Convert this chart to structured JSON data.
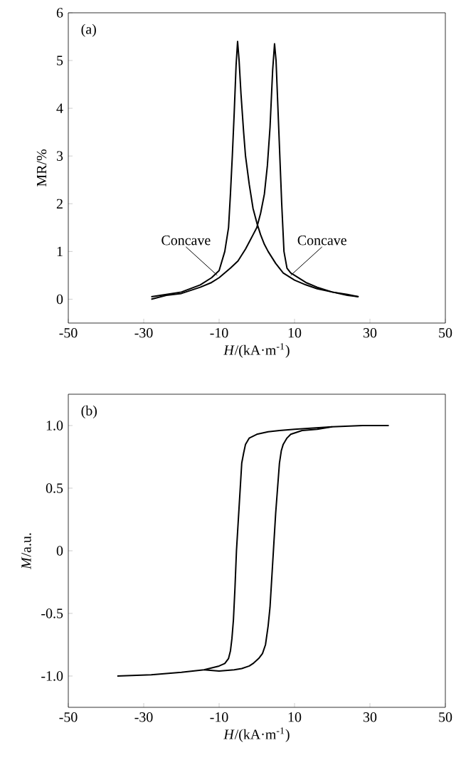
{
  "chart_data": [
    {
      "type": "line",
      "xlabel": "*H*/(kA·m$^{-1}$)",
      "ylabel": "MR/%",
      "xlim": [
        -50,
        50
      ],
      "ylim": [
        -0.5,
        6
      ],
      "xticks": [
        -50,
        -30,
        -10,
        10,
        30,
        50
      ],
      "yticks": [
        0,
        1,
        2,
        3,
        4,
        5,
        6
      ],
      "annotations": [
        "(a)",
        {
          "text": "Concave",
          "x": -10.5,
          "y": 0.5
        },
        {
          "text": "Concave",
          "x": 9,
          "y": 0.5
        }
      ],
      "series": [
        {
          "color": "#000000",
          "x": [
            -28,
            -24,
            -20,
            -15,
            -12,
            -10,
            -8.5,
            -7.5,
            -7,
            -6.5,
            -6,
            -5.5,
            -5.1,
            -4.7,
            -4.2,
            -3.5,
            -3,
            -2,
            -1,
            0,
            1,
            2,
            3,
            5,
            7,
            10,
            13,
            16,
            20,
            24,
            27
          ],
          "values": [
            0.05,
            0.1,
            0.15,
            0.3,
            0.45,
            0.6,
            1.0,
            1.5,
            2.2,
            3.0,
            3.9,
            4.9,
            5.4,
            5.0,
            4.3,
            3.5,
            3.0,
            2.4,
            1.9,
            1.6,
            1.35,
            1.15,
            1.0,
            0.75,
            0.55,
            0.4,
            0.3,
            0.22,
            0.15,
            0.08,
            0.05
          ]
        },
        {
          "color": "#000000",
          "x": [
            -28,
            -24,
            -20,
            -15,
            -12,
            -10,
            -7,
            -5,
            -3,
            -2,
            -1,
            0,
            1,
            2,
            2.8,
            3.5,
            4.2,
            4.7,
            5.1,
            5.6,
            6.1,
            6.6,
            7.2,
            8,
            9,
            10,
            13,
            16,
            20,
            24,
            27
          ],
          "values": [
            0.0,
            0.08,
            0.12,
            0.25,
            0.35,
            0.45,
            0.65,
            0.8,
            1.05,
            1.2,
            1.35,
            1.5,
            1.8,
            2.2,
            2.8,
            3.6,
            4.8,
            5.35,
            5.0,
            4.0,
            3.0,
            2.0,
            1.0,
            0.65,
            0.55,
            0.5,
            0.35,
            0.25,
            0.15,
            0.1,
            0.05
          ]
        }
      ]
    },
    {
      "type": "line",
      "xlabel": "*H*/(kA·m$^{-1}$)",
      "ylabel": "*M*/a.u.",
      "xlim": [
        -50,
        50
      ],
      "ylim": [
        -1.25,
        1.25
      ],
      "xticks": [
        -50,
        -30,
        -10,
        10,
        30,
        50
      ],
      "yticks": [
        {
          "value": -1,
          "label": "-1.0"
        },
        {
          "value": -0.5,
          "label": "-0.5"
        },
        0,
        {
          "value": 0.5,
          "label": "0.5"
        },
        {
          "value": 1,
          "label": "1.0"
        }
      ],
      "annotations": [
        "(b)"
      ],
      "series": [
        {
          "color": "#000000",
          "x": [
            35,
            28,
            20,
            15,
            10,
            6,
            3,
            0,
            -2,
            -3,
            -3.5,
            -4,
            -4.3,
            -4.7,
            -5,
            -5.4,
            -5.8,
            -6.2,
            -6.6,
            -7,
            -7.5,
            -8.5,
            -10,
            -14,
            -20,
            -28,
            -37
          ],
          "values": [
            1.0,
            1.0,
            0.99,
            0.98,
            0.97,
            0.96,
            0.95,
            0.93,
            0.9,
            0.85,
            0.78,
            0.7,
            0.55,
            0.35,
            0.2,
            0.0,
            -0.3,
            -0.55,
            -0.7,
            -0.8,
            -0.86,
            -0.9,
            -0.92,
            -0.95,
            -0.97,
            -0.99,
            -1.0
          ]
        },
        {
          "color": "#000000",
          "x": [
            -14,
            -10,
            -6,
            -4,
            -2,
            -1,
            0.5,
            1.5,
            2.3,
            3,
            3.5,
            4,
            4.5,
            5,
            5.5,
            6,
            6.5,
            7,
            8,
            9,
            12,
            16,
            20
          ],
          "values": [
            -0.95,
            -0.96,
            -0.95,
            -0.94,
            -0.92,
            -0.9,
            -0.86,
            -0.82,
            -0.75,
            -0.6,
            -0.45,
            -0.2,
            0.05,
            0.3,
            0.5,
            0.7,
            0.8,
            0.85,
            0.9,
            0.93,
            0.96,
            0.97,
            0.99
          ]
        }
      ]
    }
  ]
}
